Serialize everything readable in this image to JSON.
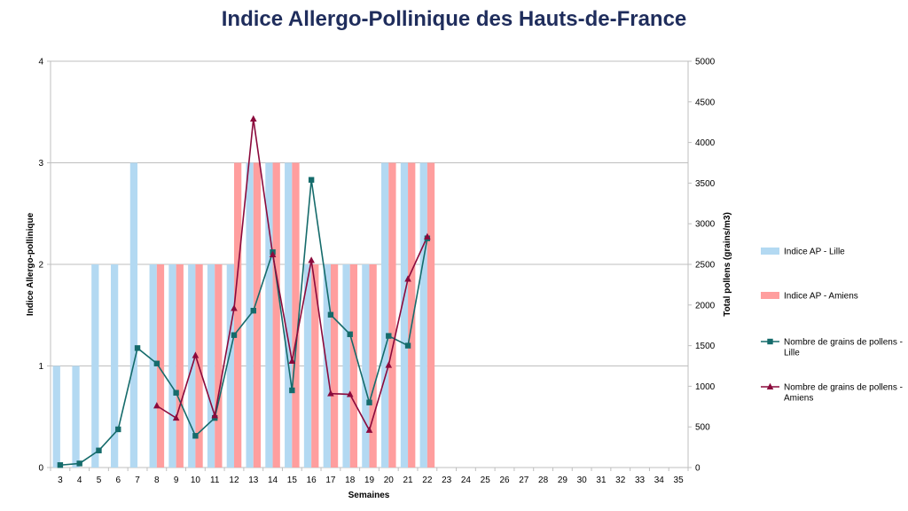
{
  "chart_data": {
    "type": "bar",
    "title": "Indice Allergo-Pollinique des Hauts-de-France",
    "xlabel": "Semaines",
    "ylabel": "Indice Allergo-pollinique",
    "y2label": "Total pollens (grains/m3)",
    "categories": [
      "3",
      "4",
      "5",
      "6",
      "7",
      "8",
      "9",
      "10",
      "11",
      "12",
      "13",
      "14",
      "15",
      "16",
      "17",
      "18",
      "19",
      "20",
      "21",
      "22",
      "23",
      "24",
      "25",
      "26",
      "27",
      "28",
      "29",
      "30",
      "31",
      "32",
      "33",
      "34",
      "35"
    ],
    "ylim": [
      0,
      4
    ],
    "yticks": [
      "0",
      "1",
      "2",
      "3",
      "4"
    ],
    "y2lim": [
      0,
      5000
    ],
    "y2ticks": [
      "0",
      "500",
      "1000",
      "1500",
      "2000",
      "2500",
      "3000",
      "3500",
      "4000",
      "4500",
      "5000"
    ],
    "grid": true,
    "legend_position": "right",
    "series": [
      {
        "name": "Indice AP - Lille",
        "kind": "bar",
        "axis": "left",
        "color": "#b3d9f2",
        "values": [
          1,
          1,
          2,
          2,
          3,
          2,
          2,
          2,
          2,
          2,
          3,
          3,
          3,
          2,
          2,
          2,
          2,
          3,
          3,
          3,
          null,
          null,
          null,
          null,
          null,
          null,
          null,
          null,
          null,
          null,
          null,
          null,
          null
        ]
      },
      {
        "name": "Indice AP - Amiens",
        "kind": "bar",
        "axis": "left",
        "color": "#ff9e9e",
        "values": [
          null,
          null,
          null,
          null,
          null,
          2,
          2,
          2,
          2,
          3,
          3,
          3,
          3,
          2,
          2,
          2,
          2,
          3,
          3,
          3,
          null,
          null,
          null,
          null,
          null,
          null,
          null,
          null,
          null,
          null,
          null,
          null,
          null
        ]
      },
      {
        "name": "Nombre de grains de pollens - Lille",
        "kind": "line",
        "marker": "square",
        "axis": "right",
        "color": "#156b6b",
        "values": [
          30,
          50,
          210,
          470,
          1470,
          1280,
          920,
          390,
          610,
          1630,
          1930,
          2650,
          950,
          3540,
          1880,
          1640,
          800,
          1620,
          1500,
          2820,
          null,
          null,
          null,
          null,
          null,
          null,
          null,
          null,
          null,
          null,
          null,
          null,
          null
        ]
      },
      {
        "name": "Nombre de grains de pollens - Amiens",
        "kind": "line",
        "marker": "triangle",
        "axis": "right",
        "color": "#8b0a3c",
        "values": [
          null,
          null,
          null,
          null,
          null,
          760,
          610,
          1380,
          640,
          1960,
          4290,
          2620,
          1310,
          2550,
          910,
          900,
          460,
          1260,
          2320,
          2840,
          null,
          null,
          null,
          null,
          null,
          null,
          null,
          null,
          null,
          null,
          null,
          null,
          null
        ]
      }
    ]
  },
  "legend": [
    {
      "label_lines": [
        "Indice AP - Lille"
      ]
    },
    {
      "label_lines": [
        "Indice AP - Amiens"
      ]
    },
    {
      "label_lines": [
        "Nombre de grains de pollens -",
        "Lille"
      ]
    },
    {
      "label_lines": [
        "Nombre de grains de pollens -",
        "Amiens"
      ]
    }
  ]
}
